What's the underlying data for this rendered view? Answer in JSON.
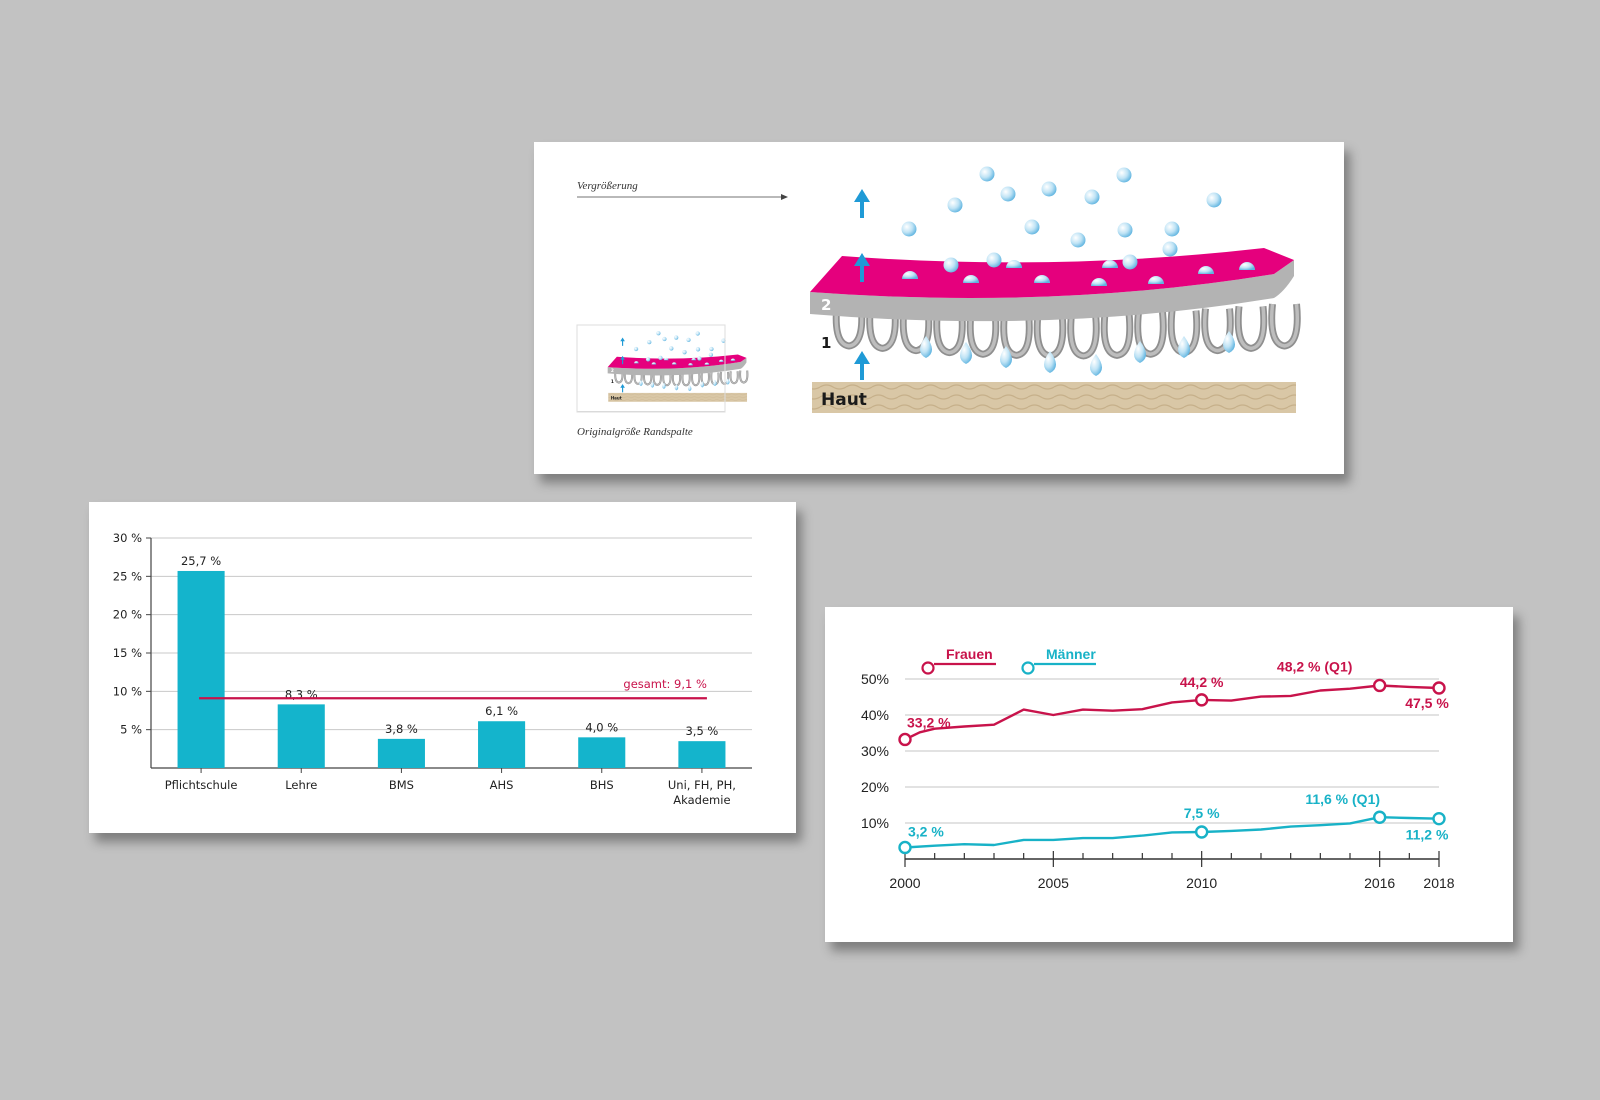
{
  "diagram": {
    "arrow_label": "Vergrößerung",
    "caption": "Originalgröße Randspalte",
    "layer_2_label": "2",
    "layer_1_label": "1",
    "skin_label": "Haut",
    "colors": {
      "membrane": "#e5007d",
      "layer2": "#b3b3b3",
      "skin": "#d9c7a6",
      "arrow": "#1f9ad6",
      "drop": "#9fd4ef"
    }
  },
  "chart_data": [
    {
      "type": "bar",
      "categories": [
        "Pflichtschule",
        "Lehre",
        "BMS",
        "AHS",
        "BHS",
        "Uni, FH, PH, Akademie"
      ],
      "category_lines": [
        [
          "Pflichtschule"
        ],
        [
          "Lehre"
        ],
        [
          "BMS"
        ],
        [
          "AHS"
        ],
        [
          "BHS"
        ],
        [
          "Uni, FH, PH,",
          "Akademie"
        ]
      ],
      "values": [
        25.7,
        8.3,
        3.8,
        6.1,
        4.0,
        3.5
      ],
      "value_labels": [
        "25,7 %",
        "8,3 %",
        "3,8 %",
        "6,1 %",
        "4,0 %",
        "3,5 %"
      ],
      "ylim": [
        0,
        30
      ],
      "yticks": [
        5,
        10,
        15,
        20,
        25,
        30
      ],
      "ytick_labels": [
        "5 %",
        "10 %",
        "15 %",
        "20 %",
        "25 %",
        "30 %"
      ],
      "reference_line": {
        "value": 9.1,
        "label": "gesamt: 9,1 %",
        "color": "#c8134b"
      },
      "bar_color": "#14b4cc",
      "grid": true
    },
    {
      "type": "line",
      "xlim": [
        2000,
        2018
      ],
      "ylim": [
        0,
        50
      ],
      "yticks": [
        10,
        20,
        30,
        40,
        50
      ],
      "ytick_labels": [
        "10%",
        "20%",
        "30%",
        "40%",
        "50%"
      ],
      "xtick_labels": [
        "2000",
        "2005",
        "2010",
        "2016",
        "2018"
      ],
      "xtick_values": [
        2000,
        2005,
        2010,
        2016,
        2018
      ],
      "grid": true,
      "legend_position": "top-left",
      "series": [
        {
          "name": "Frauen",
          "color": "#c8134b",
          "x": [
            2000,
            2000.5,
            2001,
            2002,
            2003,
            2004,
            2005,
            2006,
            2007,
            2008,
            2009,
            2010,
            2011,
            2012,
            2013,
            2014,
            2015,
            2016,
            2017,
            2018
          ],
          "y": [
            33.2,
            35.2,
            36.2,
            36.8,
            37.3,
            41.5,
            40.0,
            41.5,
            41.2,
            41.6,
            43.5,
            44.2,
            44.0,
            45.1,
            45.3,
            46.8,
            47.3,
            48.2,
            47.8,
            47.5
          ],
          "markers": [
            {
              "x": 2000,
              "y": 33.2,
              "label": "33,2 %"
            },
            {
              "x": 2010,
              "y": 44.2,
              "label": "44,2 %"
            },
            {
              "x": 2016,
              "y": 48.2,
              "label": "48,2 % (Q1)"
            },
            {
              "x": 2018,
              "y": 47.5,
              "label": "47,5 %"
            }
          ]
        },
        {
          "name": "Männer",
          "color": "#18b2c7",
          "x": [
            2000,
            2001,
            2002,
            2003,
            2004,
            2005,
            2006,
            2007,
            2008,
            2009,
            2010,
            2011,
            2012,
            2013,
            2014,
            2015,
            2016,
            2017,
            2018
          ],
          "y": [
            3.2,
            3.7,
            4.1,
            3.9,
            5.3,
            5.3,
            5.8,
            5.8,
            6.5,
            7.4,
            7.5,
            7.8,
            8.2,
            9.0,
            9.4,
            9.9,
            11.6,
            11.4,
            11.2
          ],
          "markers": [
            {
              "x": 2000,
              "y": 3.2,
              "label": "3,2 %"
            },
            {
              "x": 2010,
              "y": 7.5,
              "label": "7,5 %"
            },
            {
              "x": 2016,
              "y": 11.6,
              "label": "11,6 % (Q1)"
            },
            {
              "x": 2018,
              "y": 11.2,
              "label": "11,2 %"
            }
          ]
        }
      ]
    }
  ]
}
